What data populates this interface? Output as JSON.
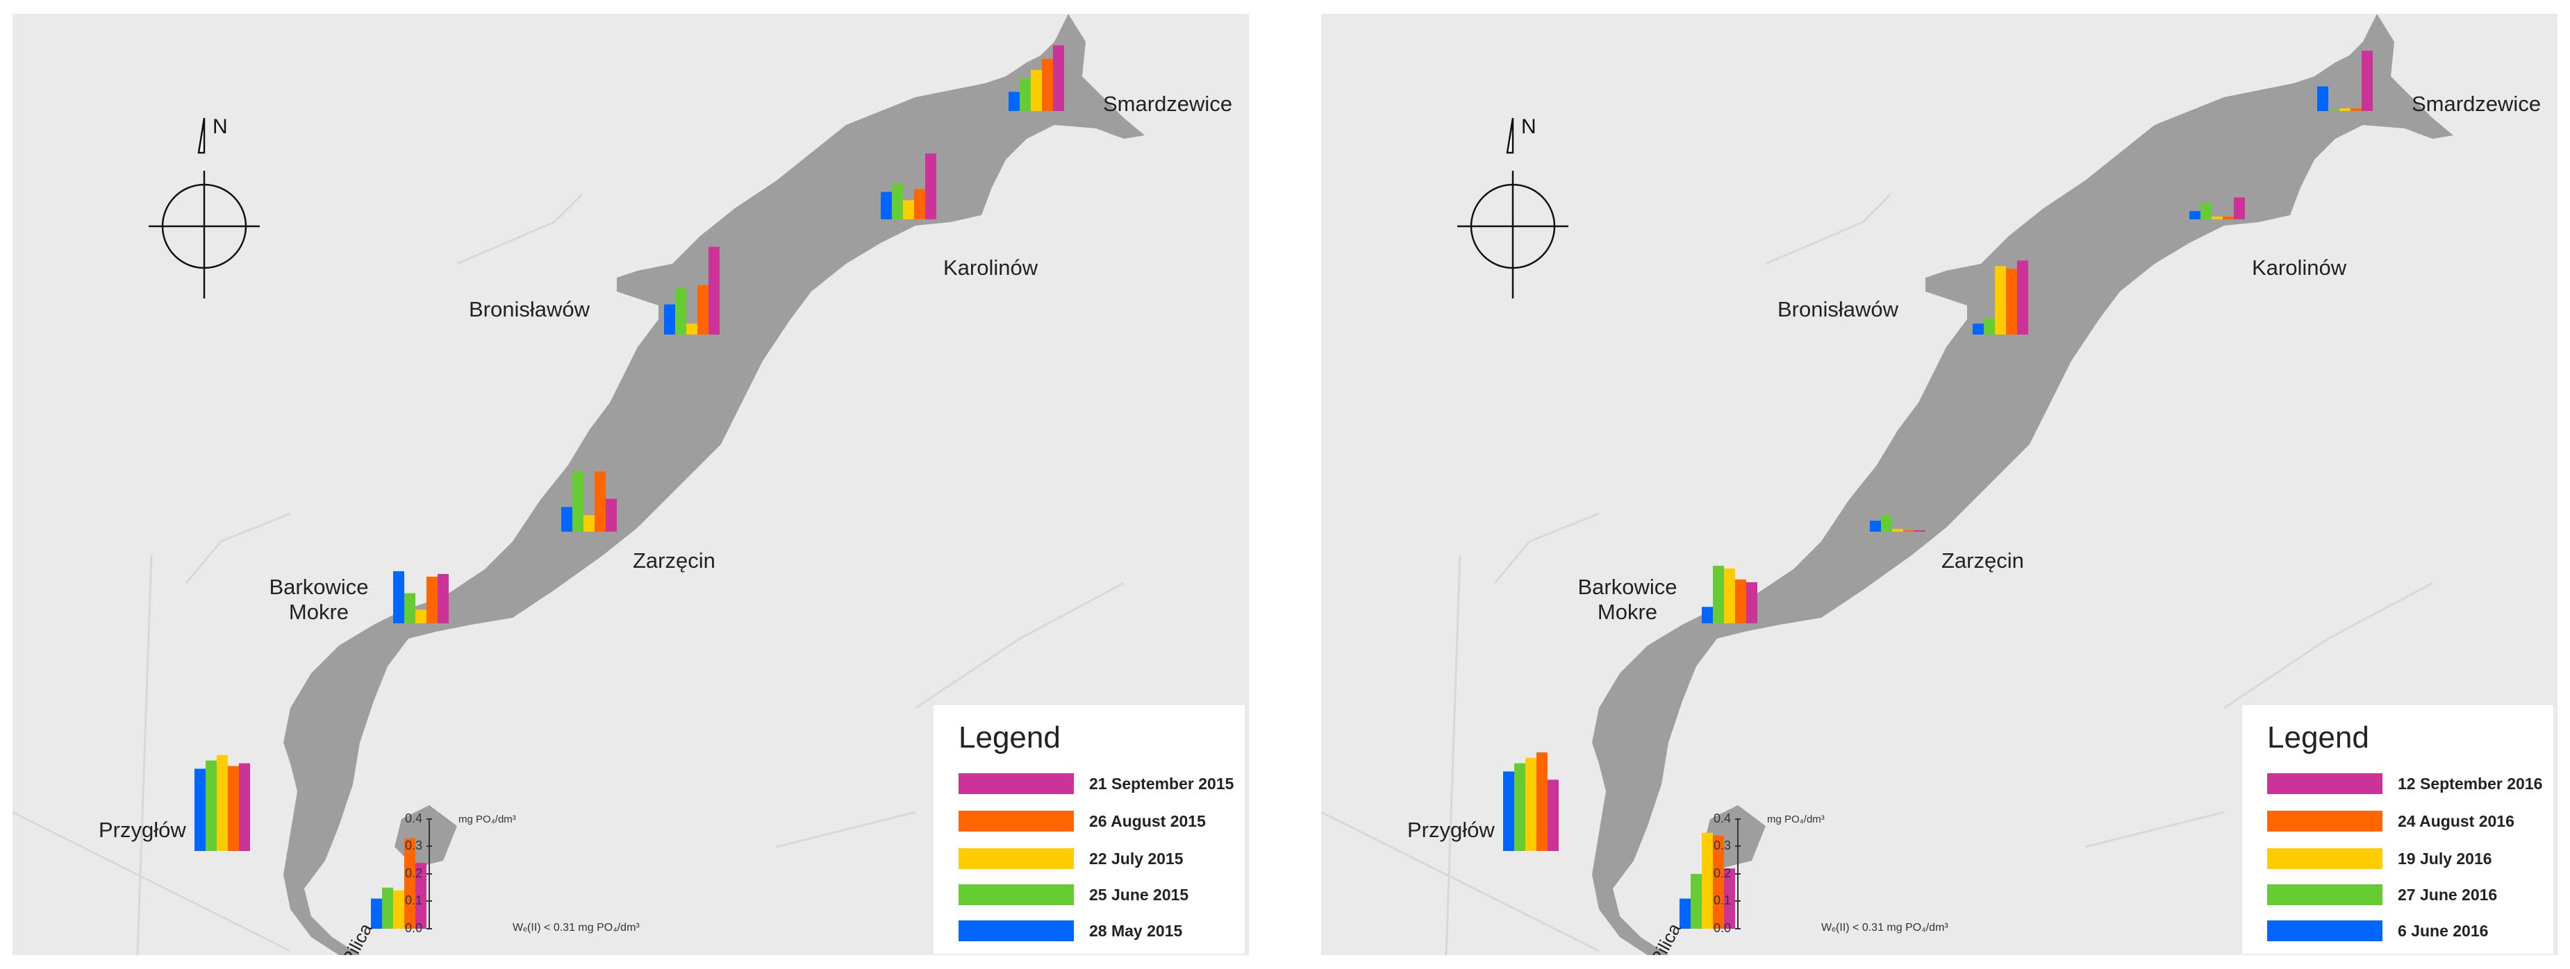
{
  "colors": {
    "map_land": "#eaeaea",
    "lake": "#9e9e9e",
    "bar_colors": [
      "#0066ff",
      "#66cc33",
      "#ffcc00",
      "#ff6600",
      "#cc3399"
    ]
  },
  "scale": {
    "unit": "mg PO₄/dm³",
    "ticks": [
      "0.4",
      "0.3",
      "0.2",
      "0.1",
      "0.0"
    ],
    "note": "Wₑ(II) < 0.31 mg PO₄/dm³"
  },
  "north_label": "N",
  "river_label": "Pilica",
  "panels": [
    {
      "legend": {
        "title": "Legend",
        "items": [
          {
            "label": "21 September 2015",
            "color": "#cc3399"
          },
          {
            "label": "26 August 2015",
            "color": "#ff6600"
          },
          {
            "label": "22 July 2015",
            "color": "#ffcc00"
          },
          {
            "label": "25 June 2015",
            "color": "#66cc33"
          },
          {
            "label": "28 May 2015",
            "color": "#0066ff"
          }
        ]
      },
      "places": {
        "smardzewice": "Smardzewice",
        "karolinow": "Karolinów",
        "bronislawow": "Bronisławów",
        "zarzecin": "Zarzęcin",
        "barkowice": "Barkowice",
        "mokre": "Mokre",
        "przyglow": "Przygłów"
      },
      "stations": [
        {
          "site": "Smardzewice",
          "values": [
            0.07,
            0.12,
            0.15,
            0.19,
            0.24
          ]
        },
        {
          "site": "Karolinów",
          "values": [
            0.1,
            0.13,
            0.07,
            0.11,
            0.24
          ]
        },
        {
          "site": "Bronisławów",
          "values": [
            0.11,
            0.17,
            0.04,
            0.18,
            0.32
          ]
        },
        {
          "site": "Zarzęcin",
          "values": [
            0.09,
            0.22,
            0.06,
            0.22,
            0.12
          ]
        },
        {
          "site": "Barkowice Mokre",
          "values": [
            0.19,
            0.11,
            0.05,
            0.17,
            0.18
          ]
        },
        {
          "site": "Przygłów",
          "values": [
            0.3,
            0.33,
            0.35,
            0.31,
            0.32
          ]
        },
        {
          "site": "Pilica",
          "values": [
            0.11,
            0.15,
            0.14,
            0.33,
            0.24
          ]
        }
      ]
    },
    {
      "legend": {
        "title": "Legend",
        "items": [
          {
            "label": "12 September 2016",
            "color": "#cc3399"
          },
          {
            "label": "24 August 2016",
            "color": "#ff6600"
          },
          {
            "label": "19 July 2016",
            "color": "#ffcc00"
          },
          {
            "label": "27 June 2016",
            "color": "#66cc33"
          },
          {
            "label": "6 June 2016",
            "color": "#0066ff"
          }
        ]
      },
      "places": {
        "smardzewice": "Smardzewice",
        "karolinow": "Karolinów",
        "bronislawow": "Bronisławów",
        "zarzecin": "Zarzęcin",
        "barkowice": "Barkowice",
        "mokre": "Mokre",
        "przyglow": "Przygłów"
      },
      "stations": [
        {
          "site": "Smardzewice",
          "values": [
            0.09,
            0.0,
            0.01,
            0.01,
            0.22
          ]
        },
        {
          "site": "Karolinów",
          "values": [
            0.03,
            0.06,
            0.01,
            0.01,
            0.08
          ]
        },
        {
          "site": "Bronisławów",
          "values": [
            0.04,
            0.06,
            0.25,
            0.24,
            0.27
          ]
        },
        {
          "site": "Zarzęcin",
          "values": [
            0.04,
            0.06,
            0.01,
            0.0,
            0.0
          ]
        },
        {
          "site": "Barkowice Mokre",
          "values": [
            0.06,
            0.21,
            0.2,
            0.16,
            0.15
          ]
        },
        {
          "site": "Przygłów",
          "values": [
            0.29,
            0.32,
            0.34,
            0.36,
            0.26
          ]
        },
        {
          "site": "Pilica",
          "values": [
            0.11,
            0.2,
            0.35,
            0.34,
            0.22
          ]
        }
      ]
    }
  ]
}
